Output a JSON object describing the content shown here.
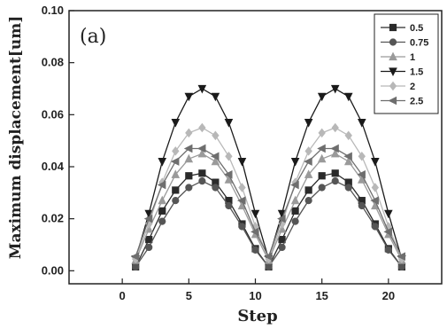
{
  "chart_data": {
    "type": "line",
    "panel_label": "(a)",
    "xlabel": "Step",
    "ylabel": "Maximum displacement[um]",
    "xlim": [
      -4,
      24
    ],
    "ylim": [
      -0.005,
      0.1
    ],
    "xticks": [
      "0",
      "5",
      "10",
      "15",
      "20"
    ],
    "yticks": [
      "0.00",
      "0.02",
      "0.04",
      "0.06",
      "0.08",
      "0.10"
    ],
    "legend_position": "top-right",
    "x": [
      1,
      2,
      3,
      4,
      5,
      6,
      7,
      8,
      9,
      10,
      11,
      12,
      13,
      14,
      15,
      16,
      17,
      18,
      19,
      20,
      21
    ],
    "series": [
      {
        "name": "0.5",
        "color": "#2a2a2a",
        "marker": "square",
        "values": [
          0.0015,
          0.012,
          0.023,
          0.031,
          0.0365,
          0.0375,
          0.034,
          0.027,
          0.018,
          0.0085,
          0.0015,
          0.012,
          0.023,
          0.031,
          0.0365,
          0.0375,
          0.034,
          0.027,
          0.018,
          0.0085,
          0.0015
        ]
      },
      {
        "name": "0.75",
        "color": "#555555",
        "marker": "circle",
        "values": [
          0.0015,
          0.009,
          0.019,
          0.027,
          0.032,
          0.0345,
          0.032,
          0.025,
          0.017,
          0.008,
          0.0015,
          0.009,
          0.019,
          0.027,
          0.032,
          0.0345,
          0.032,
          0.025,
          0.017,
          0.008,
          0.0015
        ]
      },
      {
        "name": "1",
        "color": "#9a9a9a",
        "marker": "triangle-up",
        "values": [
          0.004,
          0.016,
          0.027,
          0.037,
          0.043,
          0.045,
          0.042,
          0.035,
          0.025,
          0.014,
          0.004,
          0.016,
          0.027,
          0.037,
          0.043,
          0.045,
          0.042,
          0.035,
          0.025,
          0.014,
          0.004
        ]
      },
      {
        "name": "1.5",
        "color": "#1a1a1a",
        "marker": "triangle-down",
        "values": [
          0.0045,
          0.022,
          0.042,
          0.057,
          0.067,
          0.07,
          0.067,
          0.057,
          0.042,
          0.022,
          0.0045,
          0.022,
          0.042,
          0.057,
          0.067,
          0.07,
          0.067,
          0.057,
          0.042,
          0.022,
          0.0045
        ]
      },
      {
        "name": "2",
        "color": "#b8b8b8",
        "marker": "diamond",
        "values": [
          0.0045,
          0.018,
          0.034,
          0.046,
          0.053,
          0.055,
          0.052,
          0.044,
          0.032,
          0.017,
          0.0045,
          0.018,
          0.034,
          0.046,
          0.053,
          0.055,
          0.052,
          0.044,
          0.032,
          0.017,
          0.0045
        ]
      },
      {
        "name": "2.5",
        "color": "#6e6e6e",
        "marker": "triangle-left",
        "values": [
          0.0055,
          0.02,
          0.033,
          0.042,
          0.047,
          0.047,
          0.044,
          0.037,
          0.027,
          0.015,
          0.0055,
          0.02,
          0.033,
          0.042,
          0.047,
          0.047,
          0.044,
          0.037,
          0.027,
          0.015,
          0.0055
        ]
      }
    ]
  }
}
